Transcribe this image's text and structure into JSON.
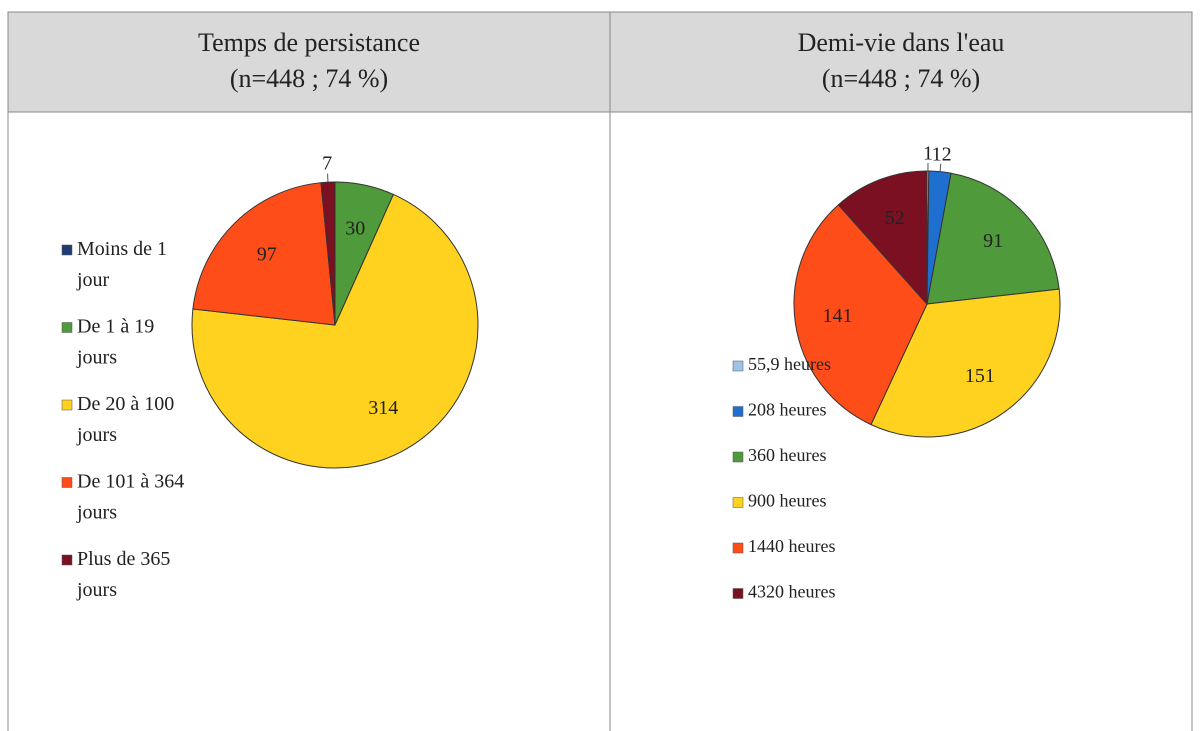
{
  "chart_data": [
    {
      "type": "pie",
      "title": "Temps de persistance",
      "subtitle": "(n=448 ; 74 %)",
      "categories": [
        "Moins de 1 jour",
        "De 1 à 19 jours",
        "De 20 à 100 jours",
        "De 101 à 364 jours",
        "Plus de 365 jours"
      ],
      "values": [
        0,
        30,
        314,
        97,
        7
      ],
      "colors": [
        "#1f3b73",
        "#4f9a3a",
        "#ffd21f",
        "#ff4d1a",
        "#7a1022"
      ]
    },
    {
      "type": "pie",
      "title": "Demi-vie dans l'eau",
      "subtitle": "(n=448 ; 74 %)",
      "categories": [
        "55,9 heures",
        "208 heures",
        "360 heures",
        "900 heures",
        "1440 heures",
        "4320 heures"
      ],
      "values": [
        1,
        12,
        91,
        151,
        141,
        52
      ],
      "colors": [
        "#9dc3e6",
        "#1f6fd1",
        "#4f9a3a",
        "#ffd21f",
        "#ff4d1a",
        "#7a1022"
      ]
    }
  ]
}
